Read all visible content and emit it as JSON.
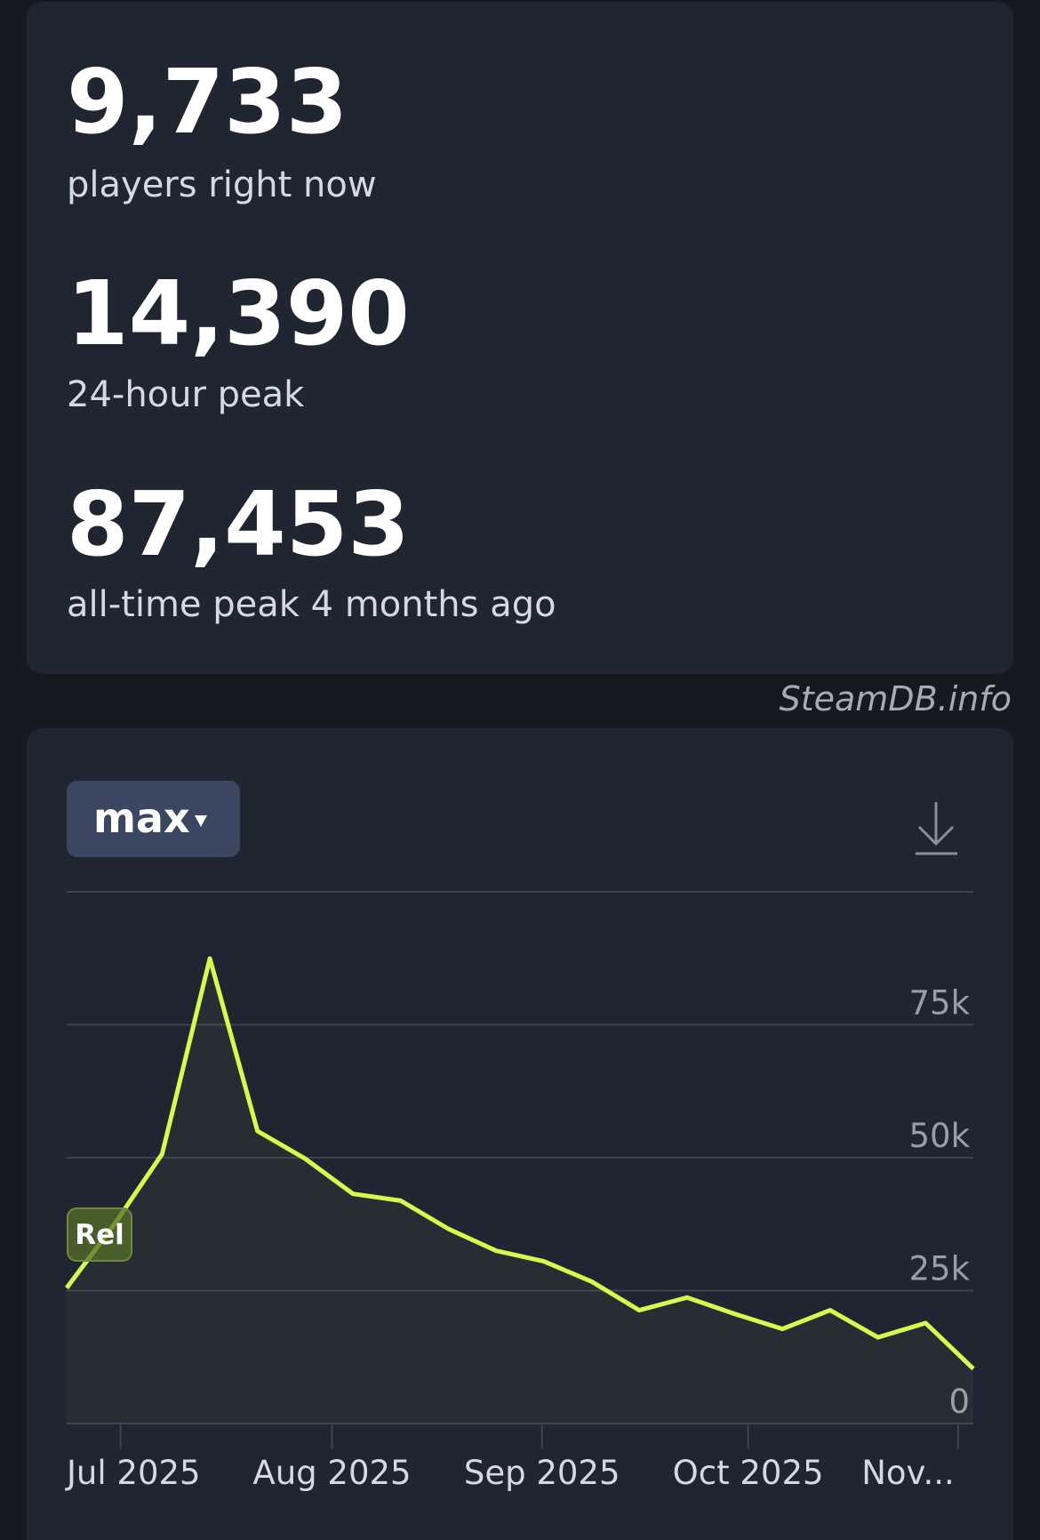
{
  "stats": [
    {
      "value": "9,733",
      "label": "players right now"
    },
    {
      "value": "14,390",
      "label": "24-hour peak"
    },
    {
      "value": "87,453",
      "label": "all-time peak 4 months ago"
    }
  ],
  "watermark": "SteamDB.info",
  "range_button": "max",
  "chart_data": {
    "type": "line",
    "categories": [
      null,
      null,
      null,
      null,
      null,
      null,
      null,
      null,
      null,
      null,
      null,
      null,
      null,
      null,
      null,
      null,
      null,
      null,
      null,
      null
    ],
    "series": [
      {
        "color": "#d8fa4c",
        "values": [
          25500,
          37500,
          50700,
          87453,
          55000,
          49800,
          43200,
          41900,
          36600,
          32500,
          30500,
          26700,
          21300,
          23700,
          20600,
          17800,
          21300,
          16200,
          18900,
          10300
        ]
      }
    ],
    "xlim": [
      0,
      19
    ],
    "xticks": [
      {
        "value": 1.13,
        "label": "Jul 2025"
      },
      {
        "value": 5.56,
        "label": "Aug 2025"
      },
      {
        "value": 9.96,
        "label": "Sep 2025"
      },
      {
        "value": 14.28,
        "label": "Oct 2025"
      },
      {
        "value": 18.68,
        "label": "Nov..."
      }
    ],
    "ylim": [
      0,
      100000
    ],
    "yticks": [
      0,
      {
        "value": 25000,
        "label": "25k"
      },
      {
        "value": 50000,
        "label": "50k"
      },
      {
        "value": 75000,
        "label": "75k"
      }
    ],
    "grid": true,
    "annotations": [
      "Rel"
    ]
  }
}
